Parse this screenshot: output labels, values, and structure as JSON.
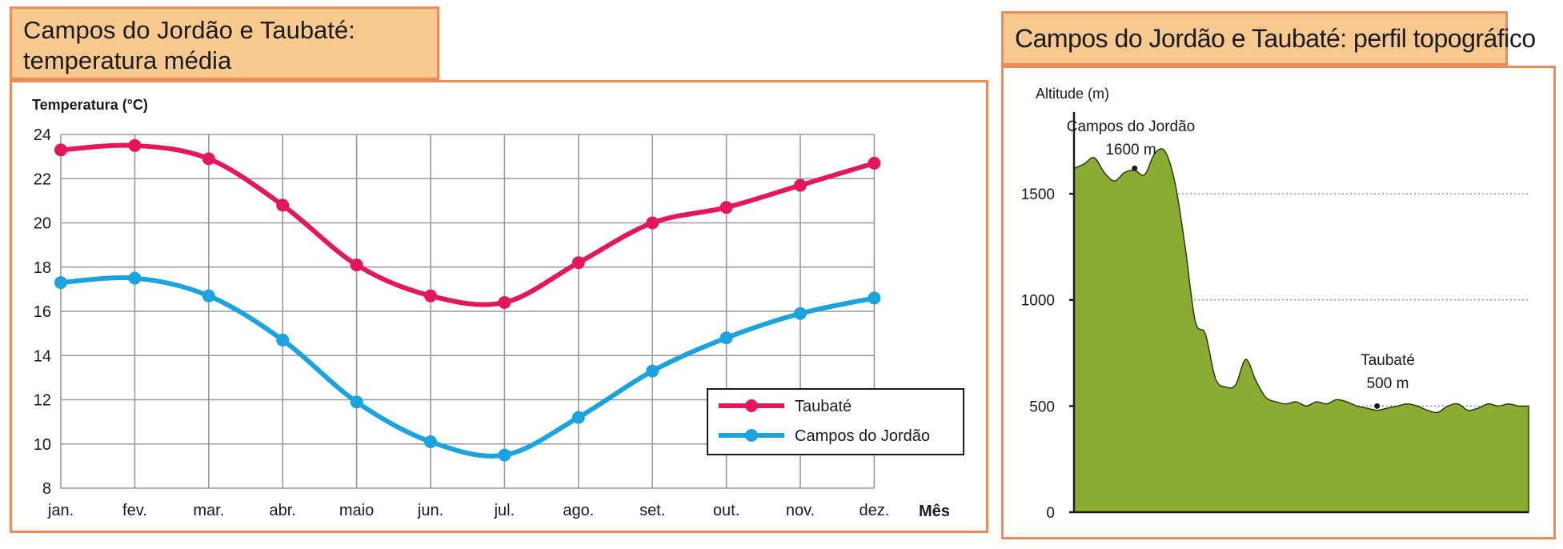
{
  "chart_data": [
    {
      "type": "line",
      "title": "Campos do Jordão e Taubaté: temperatura média",
      "title_lines": [
        "Campos do Jordão e Taubaté:",
        "temperatura média"
      ],
      "ylabel": "Temperatura (°C)",
      "xlabel": "Mês",
      "ylim": [
        8,
        24
      ],
      "yticks": [
        "8",
        "10",
        "12",
        "14",
        "16",
        "18",
        "20",
        "22",
        "24"
      ],
      "categories": [
        "jan.",
        "fev.",
        "mar.",
        "abr.",
        "maio",
        "jun.",
        "jul.",
        "ago.",
        "set.",
        "out.",
        "nov.",
        "dez."
      ],
      "grid": true,
      "legend_position": "bottom-right",
      "series": [
        {
          "name": "Taubaté",
          "color": "#e5175c",
          "values": [
            23.3,
            23.5,
            22.9,
            20.8,
            18.1,
            16.7,
            16.4,
            18.2,
            20.0,
            20.7,
            21.7,
            22.7
          ]
        },
        {
          "name": "Campos do Jordão",
          "color": "#1aa3dd",
          "values": [
            17.3,
            17.5,
            16.7,
            14.7,
            11.9,
            10.1,
            9.5,
            11.2,
            13.3,
            14.8,
            15.9,
            16.6
          ]
        }
      ]
    },
    {
      "type": "area",
      "title": "Campos do Jordão e Taubaté: perfil topográfico",
      "ylabel": "Altitude (m)",
      "ylim": [
        0,
        1900
      ],
      "yticks": [
        "0",
        "500",
        "1000",
        "1500"
      ],
      "fill_color": "#8aac33",
      "x": [
        0,
        1,
        2,
        3,
        4,
        5,
        6,
        7,
        8,
        9,
        10,
        11,
        12,
        13,
        14,
        15,
        16,
        17,
        18,
        19,
        20,
        21,
        22,
        23,
        24,
        25,
        26,
        27,
        28,
        29,
        30,
        31,
        32,
        33,
        34,
        35,
        36,
        37,
        38,
        39,
        40,
        41,
        42,
        43,
        44,
        45
      ],
      "y": [
        1620,
        1640,
        1670,
        1600,
        1560,
        1600,
        1610,
        1590,
        1690,
        1700,
        1550,
        1250,
        900,
        840,
        630,
        590,
        600,
        720,
        620,
        540,
        520,
        510,
        520,
        500,
        520,
        510,
        530,
        520,
        500,
        490,
        480,
        490,
        500,
        510,
        500,
        480,
        470,
        500,
        510,
        480,
        490,
        510,
        500,
        510,
        500,
        500
      ],
      "annotations": [
        {
          "label": "Campos do Jordão",
          "value": "1600 m",
          "x": 6,
          "y": 1620
        },
        {
          "label": "Taubaté",
          "value": "500 m",
          "x": 30,
          "y": 500
        }
      ]
    }
  ]
}
